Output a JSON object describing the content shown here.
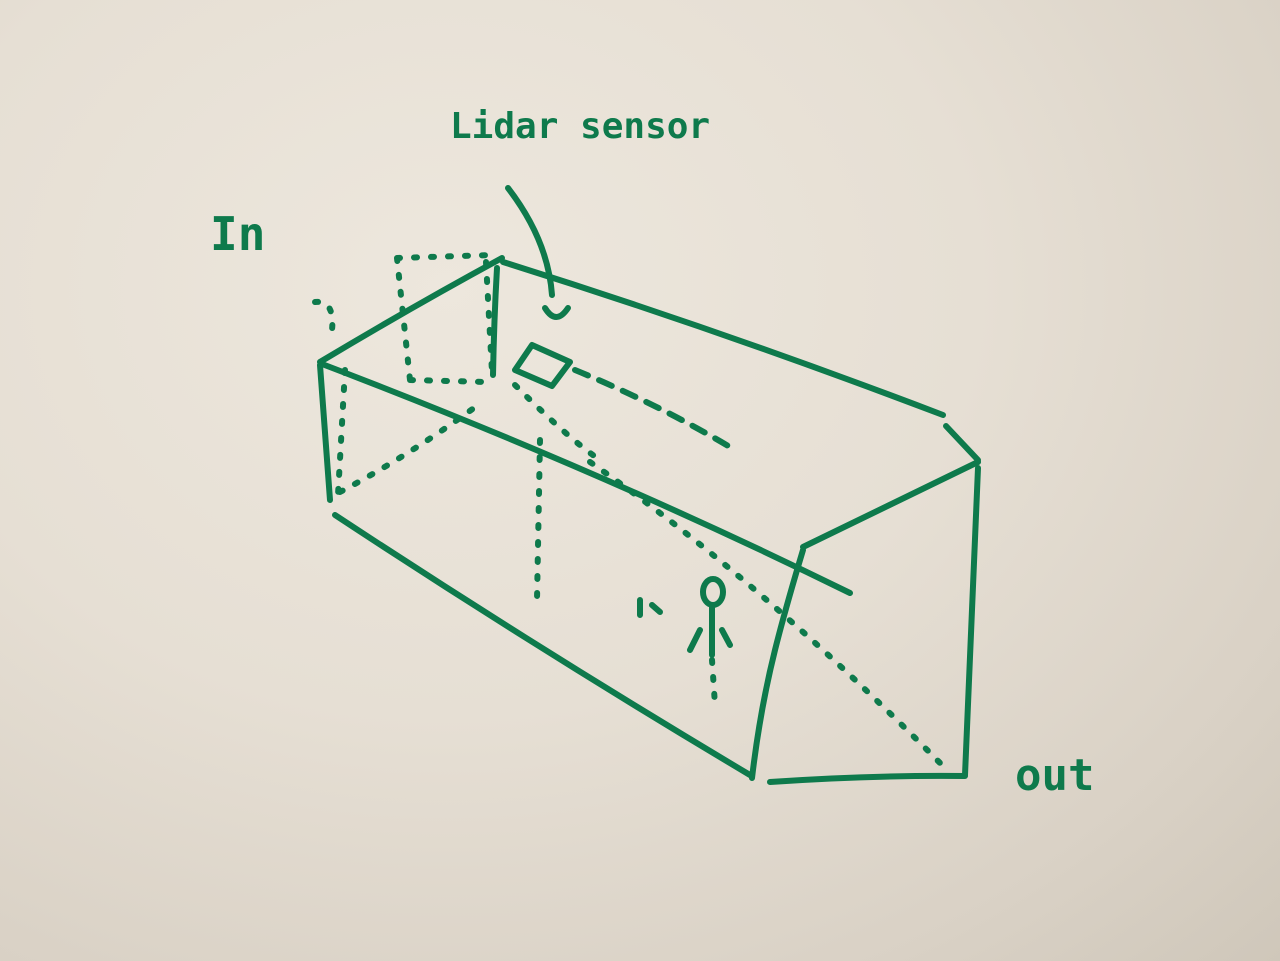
{
  "colors": {
    "paper": "#e6dfd4",
    "ink": "#0e7a4c"
  },
  "labels": {
    "sensor": "Lidar sensor",
    "entry": "In",
    "exit": "out"
  },
  "icons": {
    "sensor": "lidar-sensor-icon",
    "person": "stick-figure-icon"
  }
}
